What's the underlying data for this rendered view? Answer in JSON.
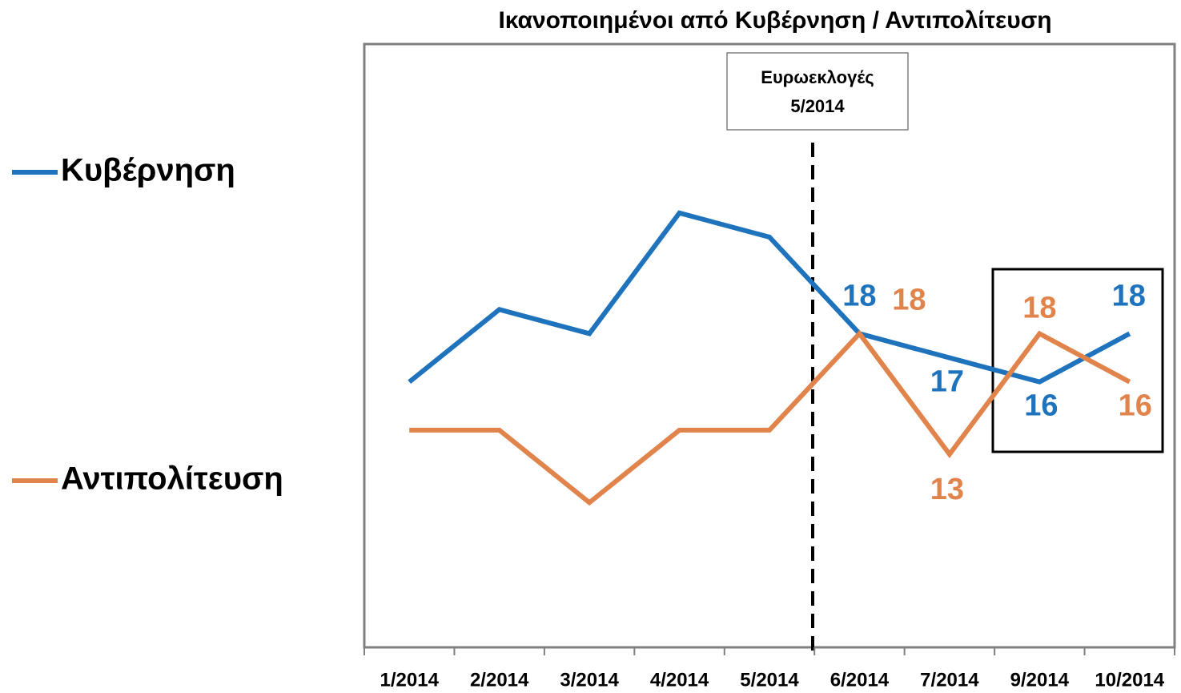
{
  "chart_data": {
    "type": "line",
    "title": "Ικανοποιημένοι από Κυβέρνηση / Αντιπολίτευση",
    "categories": [
      "1/2014",
      "2/2014",
      "3/2014",
      "4/2014",
      "5/2014",
      "6/2014",
      "7/2014",
      "9/2014",
      "10/2014"
    ],
    "series": [
      {
        "name": "Κυβέρνηση",
        "color": "#1f73bd",
        "values": [
          16,
          19,
          18,
          23,
          22,
          18,
          17,
          16,
          18
        ],
        "value_labels": [
          null,
          null,
          null,
          null,
          null,
          "18",
          "17",
          "16",
          "18"
        ]
      },
      {
        "name": "Αντιπολίτευση",
        "color": "#e0844c",
        "values": [
          14,
          14,
          11,
          14,
          14,
          18,
          13,
          18,
          16
        ],
        "value_labels": [
          null,
          null,
          null,
          null,
          null,
          "18",
          "13",
          "18",
          "16"
        ]
      }
    ],
    "ylim": [
      5,
      30
    ],
    "annotation": [
      "Ευρωεκλογές",
      "5/2014"
    ],
    "legend": "left"
  }
}
